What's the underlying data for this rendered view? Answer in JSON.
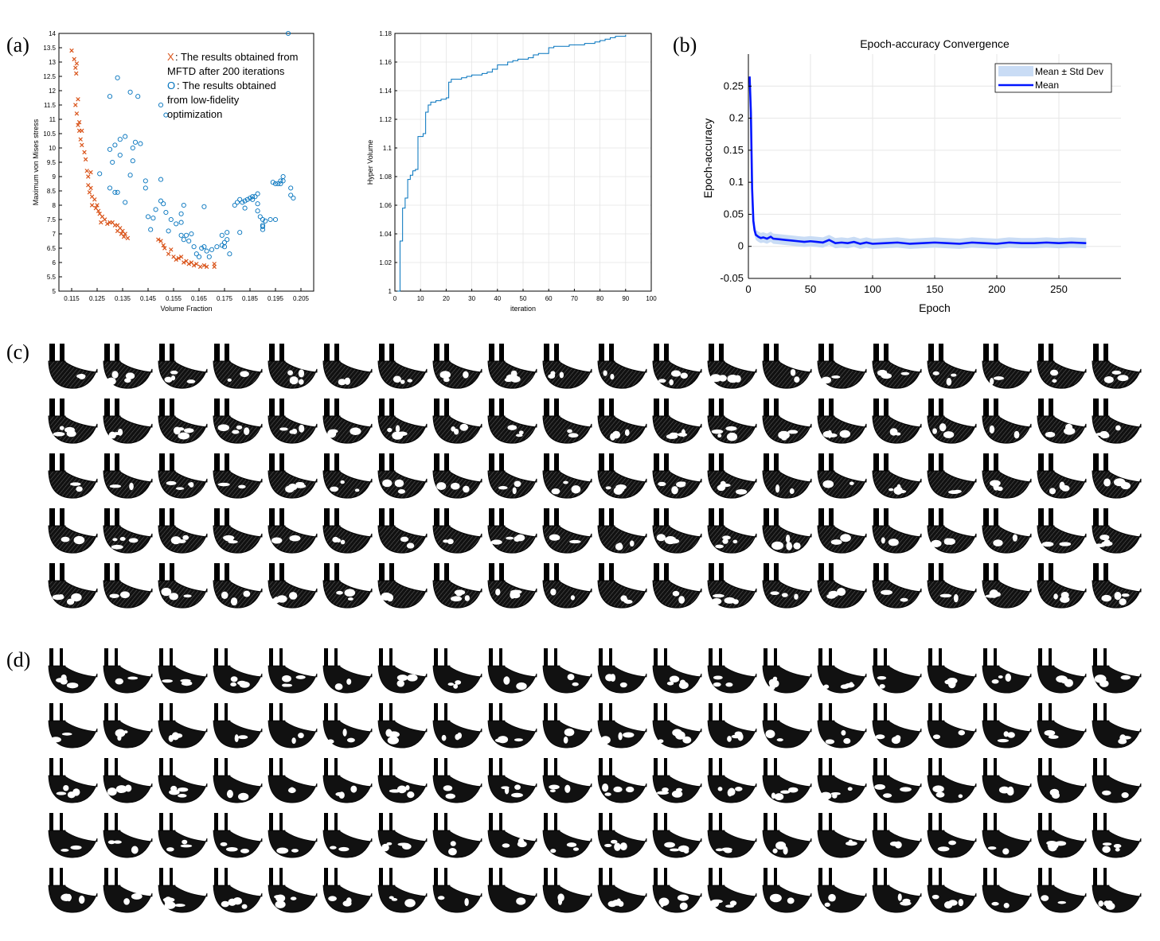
{
  "panels": {
    "a": "(a)",
    "b": "(b)",
    "c": "(c)",
    "d": "(d)"
  },
  "colors": {
    "orange": "#d95319",
    "blue": "#0072bd",
    "mean_line": "#0015ff",
    "band": "#c9dcf5"
  },
  "chart_data": [
    {
      "id": "scatter",
      "type": "scatter",
      "xlabel": "Volume Fraction",
      "ylabel": "Maximum von Mises stress",
      "xlim": [
        0.11,
        0.21
      ],
      "ylim": [
        5,
        14
      ],
      "xticks": [
        "0.115",
        "0.125",
        "0.135",
        "0.145",
        "0.155",
        "0.165",
        "0.175",
        "0.185",
        "0.195",
        "0.205"
      ],
      "yticks": [
        "5",
        "5.5",
        "6",
        "6.5",
        "7",
        "7.5",
        "8",
        "8.5",
        "9",
        "9.5",
        "10",
        "10.5",
        "11",
        "11.5",
        "12",
        "12.5",
        "13",
        "13.5",
        "14"
      ],
      "legend": [
        {
          "marker": "X",
          "text_lines": [
            "The results obtained from",
            "MFTD after 200 iterations"
          ]
        },
        {
          "marker": "O",
          "text_lines": [
            "The results obtained",
            "from low-fidelity",
            "optimization"
          ]
        }
      ],
      "series": [
        {
          "marker": "x",
          "points": [
            [
              0.115,
              13.4
            ],
            [
              0.116,
              13.1
            ],
            [
              0.1165,
              12.8
            ],
            [
              0.117,
              12.95
            ],
            [
              0.1168,
              12.6
            ],
            [
              0.1175,
              11.7
            ],
            [
              0.1165,
              11.5
            ],
            [
              0.117,
              11.2
            ],
            [
              0.118,
              10.9
            ],
            [
              0.118,
              10.6
            ],
            [
              0.1175,
              10.8
            ],
            [
              0.119,
              10.6
            ],
            [
              0.1185,
              10.3
            ],
            [
              0.119,
              10.1
            ],
            [
              0.12,
              9.85
            ],
            [
              0.1205,
              9.6
            ],
            [
              0.121,
              9.2
            ],
            [
              0.1215,
              9.0
            ],
            [
              0.1225,
              9.15
            ],
            [
              0.1215,
              8.7
            ],
            [
              0.122,
              8.45
            ],
            [
              0.1225,
              8.6
            ],
            [
              0.123,
              8.3
            ],
            [
              0.123,
              8.0
            ],
            [
              0.124,
              8.2
            ],
            [
              0.1245,
              7.9
            ],
            [
              0.125,
              8.0
            ],
            [
              0.1255,
              7.8
            ],
            [
              0.126,
              7.7
            ],
            [
              0.127,
              7.6
            ],
            [
              0.1265,
              7.4
            ],
            [
              0.128,
              7.5
            ],
            [
              0.129,
              7.35
            ],
            [
              0.13,
              7.4
            ],
            [
              0.131,
              7.4
            ],
            [
              0.132,
              7.3
            ],
            [
              0.133,
              7.3
            ],
            [
              0.134,
              7.2
            ],
            [
              0.1345,
              7.0
            ],
            [
              0.135,
              7.1
            ],
            [
              0.1355,
              6.9
            ],
            [
              0.136,
              7.0
            ],
            [
              0.137,
              6.85
            ],
            [
              0.133,
              7.1
            ],
            [
              0.149,
              6.8
            ],
            [
              0.15,
              6.75
            ],
            [
              0.151,
              6.6
            ],
            [
              0.1515,
              6.5
            ],
            [
              0.153,
              6.3
            ],
            [
              0.154,
              6.45
            ],
            [
              0.155,
              6.2
            ],
            [
              0.156,
              6.1
            ],
            [
              0.157,
              6.15
            ],
            [
              0.158,
              6.2
            ],
            [
              0.159,
              6.0
            ],
            [
              0.16,
              6.05
            ],
            [
              0.161,
              5.95
            ],
            [
              0.162,
              6.0
            ],
            [
              0.163,
              5.9
            ],
            [
              0.164,
              5.95
            ],
            [
              0.1655,
              5.85
            ],
            [
              0.167,
              5.9
            ],
            [
              0.168,
              5.85
            ],
            [
              0.171,
              5.95
            ],
            [
              0.171,
              5.85
            ]
          ]
        },
        {
          "marker": "o",
          "points": [
            [
              0.2,
              14.0
            ],
            [
              0.133,
              12.45
            ],
            [
              0.13,
              11.8
            ],
            [
              0.138,
              11.95
            ],
            [
              0.141,
              11.8
            ],
            [
              0.15,
              11.5
            ],
            [
              0.152,
              11.15
            ],
            [
              0.14,
              10.2
            ],
            [
              0.139,
              10.0
            ],
            [
              0.142,
              10.15
            ],
            [
              0.136,
              10.4
            ],
            [
              0.134,
              10.3
            ],
            [
              0.132,
              10.1
            ],
            [
              0.13,
              9.95
            ],
            [
              0.134,
              9.75
            ],
            [
              0.139,
              9.55
            ],
            [
              0.131,
              9.5
            ],
            [
              0.126,
              9.1
            ],
            [
              0.138,
              9.05
            ],
            [
              0.15,
              8.9
            ],
            [
              0.144,
              8.85
            ],
            [
              0.144,
              8.6
            ],
            [
              0.13,
              8.6
            ],
            [
              0.132,
              8.45
            ],
            [
              0.133,
              8.45
            ],
            [
              0.136,
              8.1
            ],
            [
              0.15,
              8.15
            ],
            [
              0.151,
              8.05
            ],
            [
              0.148,
              7.85
            ],
            [
              0.145,
              7.6
            ],
            [
              0.147,
              7.55
            ],
            [
              0.152,
              7.75
            ],
            [
              0.154,
              7.5
            ],
            [
              0.159,
              8.0
            ],
            [
              0.167,
              7.95
            ],
            [
              0.158,
              7.7
            ],
            [
              0.158,
              7.4
            ],
            [
              0.156,
              7.35
            ],
            [
              0.146,
              7.15
            ],
            [
              0.153,
              7.1
            ],
            [
              0.158,
              6.95
            ],
            [
              0.16,
              6.95
            ],
            [
              0.162,
              7.0
            ],
            [
              0.159,
              6.8
            ],
            [
              0.161,
              6.75
            ],
            [
              0.163,
              6.55
            ],
            [
              0.166,
              6.5
            ],
            [
              0.167,
              6.55
            ],
            [
              0.168,
              6.4
            ],
            [
              0.17,
              6.45
            ],
            [
              0.164,
              6.3
            ],
            [
              0.165,
              6.2
            ],
            [
              0.169,
              6.2
            ],
            [
              0.172,
              6.55
            ],
            [
              0.174,
              6.6
            ],
            [
              0.175,
              6.7
            ],
            [
              0.174,
              6.95
            ],
            [
              0.176,
              7.05
            ],
            [
              0.176,
              6.8
            ],
            [
              0.175,
              6.55
            ],
            [
              0.177,
              6.3
            ],
            [
              0.181,
              7.05
            ],
            [
              0.179,
              8.0
            ],
            [
              0.18,
              8.1
            ],
            [
              0.181,
              8.2
            ],
            [
              0.182,
              8.1
            ],
            [
              0.183,
              8.15
            ],
            [
              0.183,
              7.9
            ],
            [
              0.184,
              8.2
            ],
            [
              0.185,
              8.25
            ],
            [
              0.186,
              8.2
            ],
            [
              0.186,
              8.3
            ],
            [
              0.187,
              8.3
            ],
            [
              0.188,
              8.4
            ],
            [
              0.188,
              8.05
            ],
            [
              0.188,
              7.8
            ],
            [
              0.189,
              7.6
            ],
            [
              0.19,
              7.5
            ],
            [
              0.19,
              7.25
            ],
            [
              0.19,
              7.15
            ],
            [
              0.191,
              7.45
            ],
            [
              0.19,
              7.3
            ],
            [
              0.194,
              8.8
            ],
            [
              0.195,
              8.75
            ],
            [
              0.193,
              7.5
            ],
            [
              0.195,
              7.5
            ],
            [
              0.197,
              8.85
            ],
            [
              0.197,
              8.75
            ],
            [
              0.196,
              8.75
            ],
            [
              0.198,
              9.0
            ],
            [
              0.198,
              8.85
            ],
            [
              0.201,
              8.6
            ],
            [
              0.201,
              8.35
            ],
            [
              0.202,
              8.25
            ]
          ]
        }
      ]
    },
    {
      "id": "hypervolume",
      "type": "line",
      "xlabel": "iteration",
      "ylabel": "Hyper Volume",
      "xlim": [
        0,
        100
      ],
      "ylim": [
        1,
        1.18
      ],
      "xticks": [
        "0",
        "10",
        "20",
        "30",
        "40",
        "50",
        "60",
        "70",
        "80",
        "90",
        "100"
      ],
      "yticks": [
        "1",
        "1.02",
        "1.04",
        "1.06",
        "1.08",
        "1.1",
        "1.12",
        "1.14",
        "1.16",
        "1.18"
      ],
      "x": [
        1,
        2,
        3,
        4,
        5,
        6,
        7,
        8,
        9,
        10,
        11,
        12,
        13,
        14,
        16,
        18,
        20,
        21,
        22,
        24,
        26,
        28,
        30,
        32,
        34,
        36,
        38,
        40,
        42,
        44,
        46,
        48,
        50,
        52,
        54,
        56,
        58,
        60,
        62,
        64,
        66,
        68,
        70,
        72,
        74,
        76,
        78,
        80,
        82,
        84,
        86,
        88,
        90
      ],
      "y": [
        1.0,
        1.035,
        1.058,
        1.065,
        1.078,
        1.081,
        1.084,
        1.085,
        1.108,
        1.108,
        1.11,
        1.125,
        1.13,
        1.132,
        1.133,
        1.134,
        1.135,
        1.146,
        1.148,
        1.148,
        1.149,
        1.15,
        1.151,
        1.151,
        1.152,
        1.153,
        1.155,
        1.158,
        1.158,
        1.16,
        1.161,
        1.162,
        1.162,
        1.163,
        1.165,
        1.166,
        1.166,
        1.17,
        1.171,
        1.171,
        1.171,
        1.172,
        1.172,
        1.172,
        1.173,
        1.173,
        1.174,
        1.175,
        1.176,
        1.177,
        1.178,
        1.178,
        1.179
      ]
    },
    {
      "id": "convergence",
      "type": "line",
      "title": "Epoch-accuracy Convergence",
      "xlabel": "Epoch",
      "ylabel": "Epoch-accuracy",
      "xlim": [
        0,
        300
      ],
      "ylim": [
        -0.05,
        0.3
      ],
      "xticks": [
        "0",
        "50",
        "100",
        "150",
        "200",
        "250"
      ],
      "yticks": [
        "-0.05",
        "0",
        "0.05",
        "0.1",
        "0.15",
        "0.2",
        "0.25"
      ],
      "grid": true,
      "legend_position": "top-right",
      "series": [
        {
          "name": "Mean ± Std Dev",
          "kind": "band",
          "std": 0.008
        },
        {
          "name": "Mean",
          "kind": "line",
          "x": [
            1,
            2,
            3,
            4,
            5,
            6,
            8,
            10,
            12,
            15,
            18,
            20,
            25,
            30,
            35,
            40,
            45,
            50,
            55,
            60,
            65,
            70,
            75,
            80,
            85,
            90,
            95,
            100,
            110,
            120,
            130,
            140,
            150,
            160,
            170,
            180,
            190,
            200,
            210,
            220,
            230,
            240,
            250,
            260,
            272
          ],
          "y": [
            0.265,
            0.21,
            0.09,
            0.04,
            0.025,
            0.018,
            0.015,
            0.013,
            0.014,
            0.012,
            0.015,
            0.012,
            0.011,
            0.01,
            0.009,
            0.008,
            0.007,
            0.008,
            0.007,
            0.006,
            0.01,
            0.005,
            0.006,
            0.005,
            0.007,
            0.004,
            0.006,
            0.004,
            0.005,
            0.006,
            0.004,
            0.005,
            0.006,
            0.005,
            0.004,
            0.006,
            0.005,
            0.004,
            0.006,
            0.005,
            0.005,
            0.006,
            0.005,
            0.006,
            0.005
          ]
        }
      ]
    }
  ],
  "structure_grids": {
    "c": {
      "rows": 5,
      "cols": 20
    },
    "d": {
      "rows": 5,
      "cols": 20
    }
  }
}
